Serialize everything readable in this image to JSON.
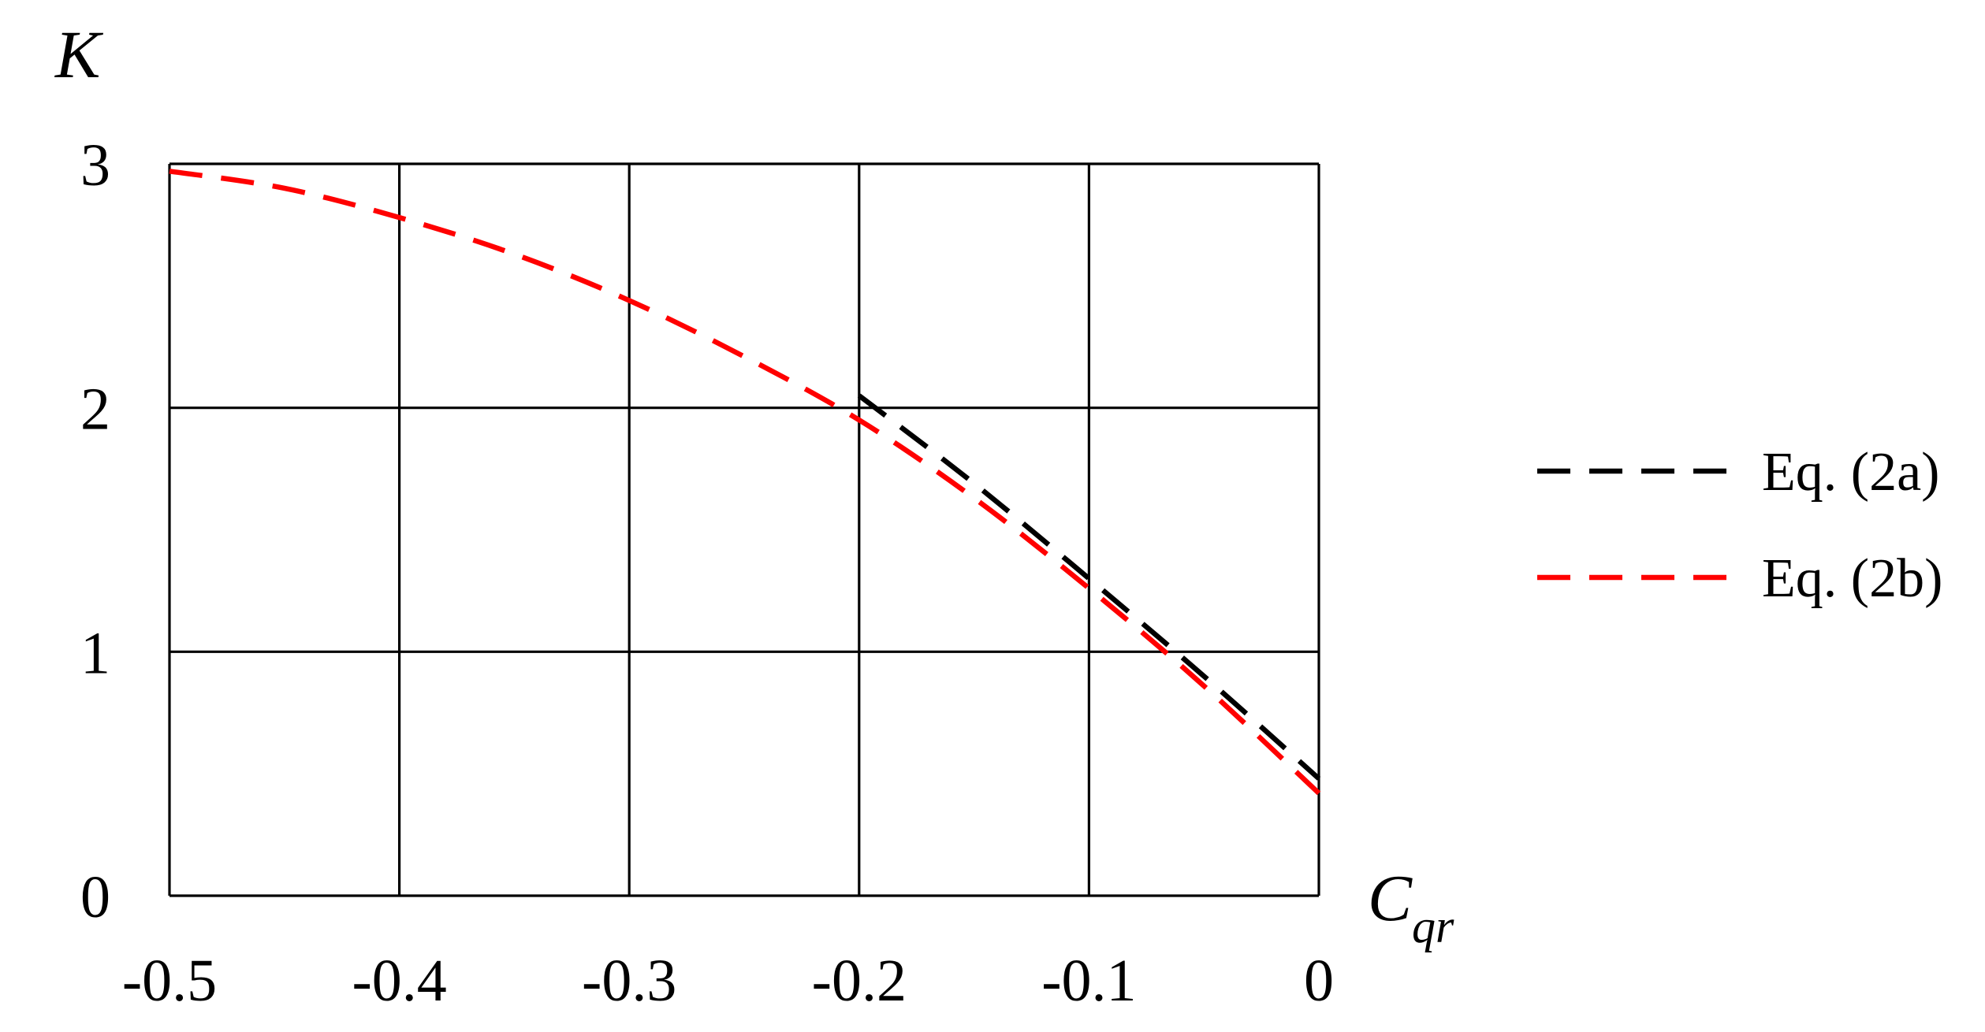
{
  "chart_data": {
    "type": "line",
    "title": "",
    "xlabel": "C",
    "xlabel_subscript": "qr",
    "ylabel": "K",
    "xlim": [
      -0.5,
      0
    ],
    "ylim": [
      0,
      3
    ],
    "xticks": [
      -0.5,
      -0.4,
      -0.3,
      -0.2,
      -0.1,
      0
    ],
    "xtick_labels": [
      "-0.5",
      "-0.4",
      "-0.3",
      "-0.2",
      "-0.1",
      "0"
    ],
    "yticks": [
      0,
      1,
      2,
      3
    ],
    "ytick_labels": [
      "0",
      "1",
      "2",
      "3"
    ],
    "grid": true,
    "legend_position": "right",
    "series": [
      {
        "name": "Eq. (2a)",
        "color": "#000000",
        "line_style": "dashed",
        "x": [
          -0.2,
          -0.15,
          -0.1,
          -0.05,
          0.0
        ],
        "y": [
          2.05,
          1.69,
          1.3,
          0.9,
          0.48
        ]
      },
      {
        "name": "Eq. (2b)",
        "color": "#ff0000",
        "line_style": "dashed",
        "x": [
          -0.5,
          -0.45,
          -0.4,
          -0.35,
          -0.3,
          -0.25,
          -0.2,
          -0.15,
          -0.1,
          -0.05,
          0.0
        ],
        "y": [
          2.97,
          2.9,
          2.78,
          2.63,
          2.44,
          2.21,
          1.95,
          1.63,
          1.26,
          0.86,
          0.42
        ]
      }
    ]
  }
}
